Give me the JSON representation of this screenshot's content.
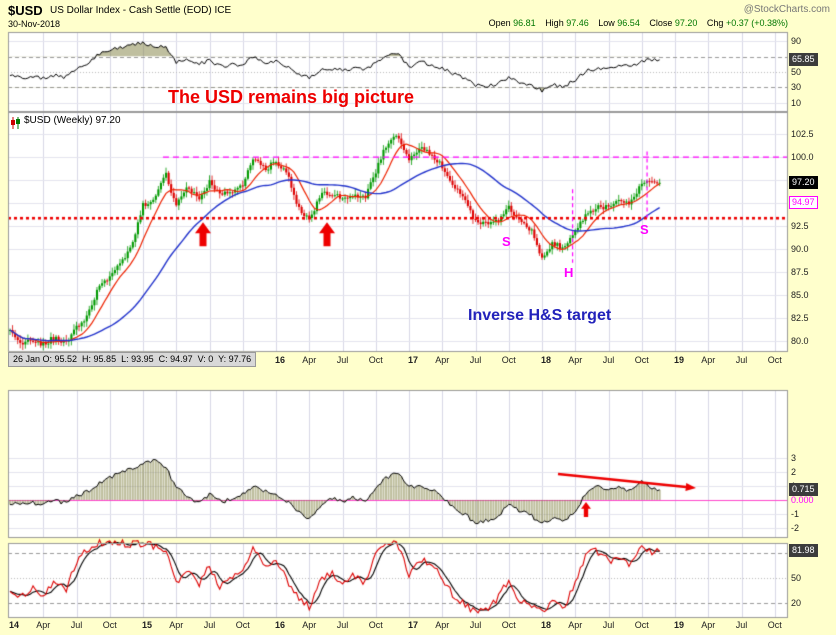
{
  "header": {
    "symbol": "$USD",
    "title": "US Dollar Index - Cash Settle (EOD) ICE",
    "source": "@StockCharts.com",
    "date": "30-Nov-2018",
    "quote": {
      "open_label": "Open",
      "open": "96.81",
      "high_label": "High",
      "high": "97.46",
      "low_label": "Low",
      "low": "96.54",
      "close_label": "Close",
      "close": "97.20",
      "chg_label": "Chg",
      "chg": "+0.37 (+0.38%)"
    }
  },
  "chart_label": "$USD (Weekly) 97.20",
  "readout": "26 Jan O: 95.52  H: 95.85  L: 93.95  C: 94.97  V: 0  Y: 97.76",
  "annotations": {
    "big_picture": "The USD remains big picture",
    "inverse_target": "Inverse H&S target",
    "left_shoulder": "S",
    "head": "H",
    "right_shoulder": "S"
  },
  "value_boxes": {
    "rsi": "65.85",
    "price": "97.20",
    "inspect": "94.97",
    "hist": "0.715",
    "stoch": "81.98"
  },
  "colors": {
    "page_bg": "#ffffcc",
    "candle_up": "#009900",
    "candle_down": "#dd0000",
    "ma_fast": "#ee2200",
    "ma_slow": "#2233cc",
    "magenta": "#ff00ff",
    "annotation_red": "#ee0000",
    "annotation_blue": "#2222bb",
    "hist_fill": "#80803f",
    "value_green": "#007700"
  },
  "chart_data": {
    "x_axis": {
      "start_year": 2014.0,
      "step_months": 1,
      "count": 59,
      "note": "monthly estimates Jan-2014 through Nov-2018, read from weekly chart"
    },
    "x_ticks": [
      {
        "t": 2014.03,
        "label": "14",
        "year": true
      },
      {
        "t": 2014.25,
        "label": "Apr"
      },
      {
        "t": 2014.5,
        "label": "Jul"
      },
      {
        "t": 2014.75,
        "label": "Oct"
      },
      {
        "t": 2015.03,
        "label": "15",
        "year": true
      },
      {
        "t": 2015.25,
        "label": "Apr"
      },
      {
        "t": 2015.5,
        "label": "Jul"
      },
      {
        "t": 2015.75,
        "label": "Oct"
      },
      {
        "t": 2016.03,
        "label": "16",
        "year": true
      },
      {
        "t": 2016.25,
        "label": "Apr"
      },
      {
        "t": 2016.5,
        "label": "Jul"
      },
      {
        "t": 2016.75,
        "label": "Oct"
      },
      {
        "t": 2017.03,
        "label": "17",
        "year": true
      },
      {
        "t": 2017.25,
        "label": "Apr"
      },
      {
        "t": 2017.5,
        "label": "Jul"
      },
      {
        "t": 2017.75,
        "label": "Oct"
      },
      {
        "t": 2018.03,
        "label": "18",
        "year": true
      },
      {
        "t": 2018.25,
        "label": "Apr"
      },
      {
        "t": 2018.5,
        "label": "Jul"
      },
      {
        "t": 2018.75,
        "label": "Oct"
      },
      {
        "t": 2019.03,
        "label": "19",
        "year": true
      },
      {
        "t": 2019.25,
        "label": "Apr"
      },
      {
        "t": 2019.5,
        "label": "Jul"
      },
      {
        "t": 2019.75,
        "label": "Oct"
      }
    ],
    "panels": [
      {
        "id": "rsi",
        "type": "line",
        "name": "RSI(14) weekly",
        "ylim": [
          0,
          100
        ],
        "yticks": [
          90,
          70,
          50,
          30,
          10
        ],
        "levels": {
          "overbought": 70,
          "midline": 50,
          "oversold": 30
        },
        "current": 65.85,
        "values": [
          45,
          42,
          44,
          41,
          46,
          43,
          55,
          62,
          74,
          78,
          82,
          85,
          88,
          84,
          83,
          62,
          66,
          60,
          65,
          57,
          59,
          61,
          70,
          62,
          64,
          58,
          47,
          42,
          53,
          55,
          52,
          55,
          52,
          63,
          72,
          74,
          57,
          63,
          60,
          55,
          48,
          42,
          33,
          32,
          35,
          42,
          36,
          33,
          26,
          33,
          31,
          40,
          52,
          55,
          55,
          58,
          57,
          64,
          65.85
        ]
      },
      {
        "id": "price",
        "type": "candlestick",
        "name": "$USD weekly",
        "ylim": [
          78.8,
          104.9
        ],
        "yticks": [
          102.5,
          100.0,
          97.5,
          95.0,
          92.5,
          90.0,
          87.5,
          85.0,
          82.5,
          80.0
        ],
        "current": 97.2,
        "overlays": [
          "fast MA (red)",
          "slow MA (blue)"
        ],
        "hlines": [
          {
            "value": 100.0,
            "color": "#ff00ff",
            "style": "dashed"
          },
          {
            "value": 93.35,
            "color": "#ee0000",
            "style": "dotted",
            "note": "inverse H&S neckline"
          }
        ],
        "vlines": [
          {
            "t": 2018.23,
            "from": 96.5,
            "to": 88.5,
            "color": "#ff00ff",
            "style": "dashed"
          },
          {
            "t": 2018.79,
            "from": 100.6,
            "to": 93.4,
            "color": "#ff00ff",
            "style": "dashed"
          }
        ],
        "close": [
          81.0,
          79.8,
          80.1,
          79.6,
          80.4,
          79.8,
          81.5,
          82.7,
          85.9,
          87.0,
          88.4,
          90.3,
          94.8,
          95.3,
          98.4,
          94.6,
          96.9,
          95.5,
          97.3,
          95.8,
          96.3,
          96.9,
          100.2,
          98.6,
          99.6,
          98.2,
          94.6,
          93.1,
          95.9,
          96.1,
          95.5,
          96.0,
          95.5,
          98.4,
          101.5,
          102.2,
          99.5,
          101.1,
          100.4,
          99.0,
          97.0,
          95.6,
          92.9,
          92.7,
          93.1,
          94.6,
          93.0,
          92.1,
          89.1,
          90.6,
          90.0,
          91.8,
          94.0,
          94.5,
          94.6,
          95.1,
          95.1,
          97.1,
          97.2
        ]
      },
      {
        "id": "momentum",
        "type": "histogram",
        "name": "momentum histogram",
        "ylim": [
          -2.7,
          7.8
        ],
        "yticks": [
          3,
          2,
          1,
          -1,
          -2
        ],
        "zero_label": "0.000",
        "current": 0.715,
        "values": [
          -0.2,
          -0.3,
          -0.2,
          -0.3,
          -0.1,
          -0.2,
          0.3,
          0.6,
          1.2,
          1.6,
          1.9,
          2.2,
          2.6,
          2.8,
          2.4,
          0.9,
          0.3,
          -0.2,
          0.4,
          -0.1,
          0.0,
          0.4,
          1.0,
          0.6,
          0.4,
          -0.1,
          -0.9,
          -1.3,
          -0.4,
          0.2,
          -0.1,
          0.2,
          -0.1,
          0.8,
          1.6,
          1.9,
          0.9,
          1.0,
          0.8,
          0.2,
          -0.5,
          -1.0,
          -1.6,
          -1.5,
          -1.1,
          -0.4,
          -0.8,
          -1.1,
          -1.7,
          -1.3,
          -1.5,
          -0.8,
          0.5,
          0.9,
          0.8,
          0.9,
          0.6,
          1.3,
          0.715
        ]
      },
      {
        "id": "stoch",
        "type": "line",
        "name": "stochastic oscillator (fast red / slow black)",
        "ylim": [
          0,
          100
        ],
        "yticks": [
          80,
          50,
          20
        ],
        "current": 81.98,
        "values": [
          35,
          25,
          40,
          30,
          45,
          35,
          70,
          85,
          92,
          93,
          92,
          90,
          92,
          88,
          85,
          45,
          60,
          42,
          65,
          38,
          52,
          60,
          85,
          60,
          70,
          48,
          25,
          15,
          45,
          58,
          40,
          55,
          42,
          80,
          92,
          90,
          55,
          75,
          65,
          50,
          30,
          18,
          10,
          12,
          25,
          48,
          22,
          15,
          8,
          20,
          15,
          45,
          80,
          82,
          70,
          75,
          65,
          88,
          81.98
        ]
      }
    ]
  }
}
